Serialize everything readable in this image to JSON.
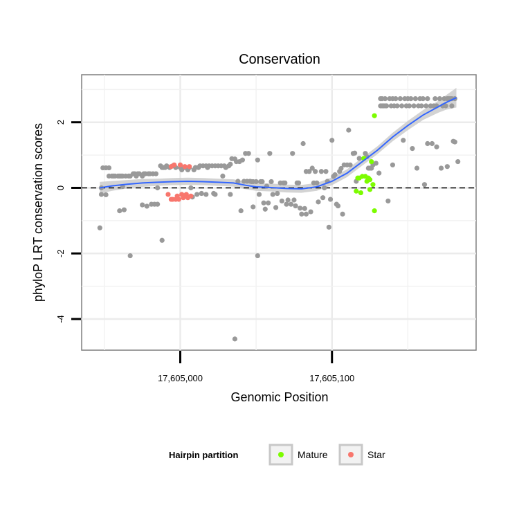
{
  "chart_data": {
    "type": "scatter",
    "title": "Conservation",
    "xlabel": "Genomic Position",
    "ylabel": "phyloP LRT conservation scores",
    "xlim": [
      17604935,
      17605195
    ],
    "ylim": [
      -4.95,
      3.45
    ],
    "x_ticks": [
      {
        "value": 17605000,
        "label": "17,605,000"
      },
      {
        "value": 17605100,
        "label": "17,605,100"
      }
    ],
    "y_ticks": [
      {
        "value": 2,
        "label": "2"
      },
      {
        "value": 0,
        "label": "0"
      },
      {
        "value": -2,
        "label": "-2"
      },
      {
        "value": -4,
        "label": "-4"
      }
    ],
    "reference_line": {
      "y": 0,
      "style": "dashed"
    },
    "grid": true,
    "legend": {
      "title": "Hairpin partition",
      "position": "bottom",
      "entries": [
        {
          "label": "Mature",
          "color": "#7CFC00"
        },
        {
          "label": "Star",
          "color": "#F8766D"
        }
      ]
    },
    "colors": {
      "other": "#999999",
      "mature": "#7CFC00",
      "star": "#F8766D",
      "smooth": "#3366FF",
      "ribbon": "#C8C8C8"
    },
    "series": [
      {
        "name": "Other",
        "points": [
          [
            17604947,
            -1.22
          ],
          [
            17604948,
            0.0
          ],
          [
            17604948,
            -0.2
          ],
          [
            17604949,
            0.61
          ],
          [
            17604951,
            -0.21
          ],
          [
            17604951,
            0.61
          ],
          [
            17604953,
            0.61
          ],
          [
            17604953,
            0.36
          ],
          [
            17604955,
            0.36
          ],
          [
            17604956,
            0.36
          ],
          [
            17604957,
            0.36
          ],
          [
            17604959,
            0.36
          ],
          [
            17604960,
            0.36
          ],
          [
            17604960,
            -0.7
          ],
          [
            17604961,
            0.36
          ],
          [
            17604962,
            0.36
          ],
          [
            17604962,
            0.04
          ],
          [
            17604963,
            -0.67
          ],
          [
            17604964,
            0.36
          ],
          [
            17604966,
            0.36
          ],
          [
            17604967,
            -2.07
          ],
          [
            17604967,
            0.36
          ],
          [
            17604969,
            0.43
          ],
          [
            17604970,
            0.43
          ],
          [
            17604971,
            0.36
          ],
          [
            17604972,
            0.43
          ],
          [
            17604973,
            0.43
          ],
          [
            17604975,
            0.36
          ],
          [
            17604975,
            -0.52
          ],
          [
            17604976,
            0.43
          ],
          [
            17604977,
            0.43
          ],
          [
            17604978,
            -0.56
          ],
          [
            17604979,
            0.43
          ],
          [
            17604980,
            0.43
          ],
          [
            17604981,
            -0.5
          ],
          [
            17604982,
            0.43
          ],
          [
            17604983,
            -0.5
          ],
          [
            17604984,
            0.43
          ],
          [
            17604985,
            -0.5
          ],
          [
            17604985,
            0.0
          ],
          [
            17604987,
            0.67
          ],
          [
            17604988,
            0.62
          ],
          [
            17604988,
            -1.6
          ],
          [
            17604989,
            0.62
          ],
          [
            17604990,
            0.62
          ],
          [
            17604991,
            0.67
          ],
          [
            17604993,
            0.62
          ],
          [
            17604995,
            0.67
          ],
          [
            17604997,
            0.62
          ],
          [
            17605000,
            0.62
          ],
          [
            17605001,
            0.55
          ],
          [
            17605003,
            0.62
          ],
          [
            17605005,
            0.55
          ],
          [
            17605006,
            0.62
          ],
          [
            17605007,
            0.0
          ],
          [
            17605008,
            -0.28
          ],
          [
            17605009,
            0.55
          ],
          [
            17605010,
            0.62
          ],
          [
            17605011,
            -0.2
          ],
          [
            17605012,
            0.62
          ],
          [
            17605013,
            0.67
          ],
          [
            17605014,
            -0.17
          ],
          [
            17605015,
            0.67
          ],
          [
            17605017,
            0.67
          ],
          [
            17605017,
            -0.2
          ],
          [
            17605018,
            0.62
          ],
          [
            17605019,
            0.67
          ],
          [
            17605021,
            0.67
          ],
          [
            17605022,
            -0.17
          ],
          [
            17605023,
            0.67
          ],
          [
            17605023,
            -0.2
          ],
          [
            17605025,
            0.67
          ],
          [
            17605027,
            0.67
          ],
          [
            17605028,
            0.36
          ],
          [
            17605029,
            0.67
          ],
          [
            17605030,
            0.62
          ],
          [
            17605032,
            0.67
          ],
          [
            17605033,
            0.72
          ],
          [
            17605033,
            -0.2
          ],
          [
            17605034,
            0.89
          ],
          [
            17605036,
            -4.61
          ],
          [
            17605036,
            0.88
          ],
          [
            17605037,
            0.8
          ],
          [
            17605038,
            0.2
          ],
          [
            17605039,
            0.8
          ],
          [
            17605040,
            -0.7
          ],
          [
            17605041,
            0.85
          ],
          [
            17605042,
            0.2
          ],
          [
            17605043,
            1.05
          ],
          [
            17605044,
            0.2
          ],
          [
            17605045,
            1.05
          ],
          [
            17605046,
            0.2
          ],
          [
            17605047,
            0.19
          ],
          [
            17605048,
            0.19
          ],
          [
            17605048,
            -0.58
          ],
          [
            17605050,
            0.19
          ],
          [
            17605051,
            0.85
          ],
          [
            17605051,
            -2.07
          ],
          [
            17605052,
            -0.2
          ],
          [
            17605053,
            0.19
          ],
          [
            17605054,
            0.19
          ],
          [
            17605055,
            -0.46
          ],
          [
            17605056,
            -0.65
          ],
          [
            17605057,
            0.05
          ],
          [
            17605058,
            -0.46
          ],
          [
            17605059,
            1.05
          ],
          [
            17605060,
            0.19
          ],
          [
            17605061,
            -0.2
          ],
          [
            17605063,
            -0.6
          ],
          [
            17605064,
            -0.17
          ],
          [
            17605066,
            0.15
          ],
          [
            17605067,
            -0.4
          ],
          [
            17605068,
            0.15
          ],
          [
            17605069,
            0.15
          ],
          [
            17605070,
            -0.5
          ],
          [
            17605071,
            -0.37
          ],
          [
            17605073,
            -0.5
          ],
          [
            17605074,
            1.05
          ],
          [
            17605075,
            -0.37
          ],
          [
            17605076,
            -0.55
          ],
          [
            17605077,
            0.15
          ],
          [
            17605078,
            0.15
          ],
          [
            17605079,
            -0.62
          ],
          [
            17605080,
            -0.8
          ],
          [
            17605081,
            1.35
          ],
          [
            17605082,
            -0.63
          ],
          [
            17605083,
            0.5
          ],
          [
            17605083,
            -0.8
          ],
          [
            17605085,
            0.5
          ],
          [
            17605086,
            -0.73
          ],
          [
            17605087,
            0.6
          ],
          [
            17605088,
            0.15
          ],
          [
            17605089,
            0.5
          ],
          [
            17605090,
            0.15
          ],
          [
            17605091,
            -0.43
          ],
          [
            17605093,
            0.5
          ],
          [
            17605094,
            -0.3
          ],
          [
            17605095,
            0.0
          ],
          [
            17605096,
            0.5
          ],
          [
            17605097,
            0.2
          ],
          [
            17605098,
            -1.2
          ],
          [
            17605099,
            -0.35
          ],
          [
            17605100,
            1.45
          ],
          [
            17605101,
            0.35
          ],
          [
            17605102,
            0.4
          ],
          [
            17605103,
            -0.5
          ],
          [
            17605104,
            -0.55
          ],
          [
            17605105,
            0.5
          ],
          [
            17605106,
            0.59
          ],
          [
            17605107,
            -0.8
          ],
          [
            17605108,
            0.7
          ],
          [
            17605110,
            0.7
          ],
          [
            17605111,
            1.76
          ],
          [
            17605112,
            0.7
          ],
          [
            17605114,
            1.05
          ],
          [
            17605115,
            1.06
          ],
          [
            17605116,
            0.2
          ],
          [
            17605118,
            0.9
          ],
          [
            17605122,
            1.05
          ],
          [
            17605123,
            0.95
          ],
          [
            17605124,
            0.6
          ],
          [
            17605125,
            0.6
          ],
          [
            17605126,
            0.6
          ],
          [
            17605127,
            0.7
          ],
          [
            17605129,
            0.75
          ],
          [
            17605131,
            0.45
          ],
          [
            17605132,
            2.72
          ],
          [
            17605132,
            2.5
          ],
          [
            17605133,
            2.72
          ],
          [
            17605133,
            2.5
          ],
          [
            17605134,
            2.5
          ],
          [
            17605135,
            2.5
          ],
          [
            17605135,
            2.72
          ],
          [
            17605136,
            2.5
          ],
          [
            17605137,
            -0.4
          ],
          [
            17605138,
            2.72
          ],
          [
            17605139,
            2.5
          ],
          [
            17605140,
            0.7
          ],
          [
            17605140,
            2.72
          ],
          [
            17605141,
            2.5
          ],
          [
            17605142,
            2.72
          ],
          [
            17605143,
            2.5
          ],
          [
            17605145,
            2.72
          ],
          [
            17605146,
            2.5
          ],
          [
            17605147,
            1.45
          ],
          [
            17605148,
            2.72
          ],
          [
            17605149,
            2.5
          ],
          [
            17605150,
            2.72
          ],
          [
            17605151,
            2.5
          ],
          [
            17605152,
            2.72
          ],
          [
            17605153,
            1.2
          ],
          [
            17605154,
            2.5
          ],
          [
            17605155,
            2.72
          ],
          [
            17605156,
            0.6
          ],
          [
            17605157,
            2.5
          ],
          [
            17605158,
            2.72
          ],
          [
            17605159,
            2.5
          ],
          [
            17605160,
            2.72
          ],
          [
            17605161,
            0.1
          ],
          [
            17605162,
            2.5
          ],
          [
            17605163,
            1.35
          ],
          [
            17605163,
            2.72
          ],
          [
            17605165,
            2.5
          ],
          [
            17605166,
            1.35
          ],
          [
            17605167,
            2.5
          ],
          [
            17605168,
            2.72
          ],
          [
            17605169,
            1.25
          ],
          [
            17605169,
            2.5
          ],
          [
            17605171,
            2.72
          ],
          [
            17605172,
            0.6
          ],
          [
            17605173,
            2.5
          ],
          [
            17605174,
            2.72
          ],
          [
            17605175,
            2.5
          ],
          [
            17605176,
            0.65
          ],
          [
            17605176,
            2.72
          ],
          [
            17605177,
            2.72
          ],
          [
            17605178,
            2.72
          ],
          [
            17605179,
            2.5
          ],
          [
            17605179,
            2.72
          ],
          [
            17605180,
            1.42
          ],
          [
            17605181,
            2.72
          ],
          [
            17605181,
            1.4
          ],
          [
            17605183,
            0.8
          ]
        ]
      },
      {
        "name": "Mature",
        "points": [
          [
            17605116,
            -0.1
          ],
          [
            17605117,
            0.3
          ],
          [
            17605118,
            0.3
          ],
          [
            17605119,
            -0.15
          ],
          [
            17605120,
            0.35
          ],
          [
            17605121,
            0.9
          ],
          [
            17605122,
            0.35
          ],
          [
            17605123,
            0.2
          ],
          [
            17605124,
            0.3
          ],
          [
            17605125,
            0.25
          ],
          [
            17605125,
            -0.05
          ],
          [
            17605126,
            0.8
          ],
          [
            17605127,
            0.1
          ],
          [
            17605128,
            -0.7
          ],
          [
            17605128,
            2.2
          ]
        ]
      },
      {
        "name": "Star",
        "points": [
          [
            17604992,
            -0.2
          ],
          [
            17604994,
            -0.35
          ],
          [
            17604994,
            0.65
          ],
          [
            17604995,
            -0.35
          ],
          [
            17604996,
            0.7
          ],
          [
            17604997,
            -0.35
          ],
          [
            17604998,
            -0.25
          ],
          [
            17604999,
            -0.35
          ],
          [
            17605000,
            0.7
          ],
          [
            17605001,
            -0.2
          ],
          [
            17605002,
            -0.3
          ],
          [
            17605003,
            0.65
          ],
          [
            17605004,
            -0.2
          ],
          [
            17605005,
            -0.3
          ],
          [
            17605006,
            0.65
          ],
          [
            17605007,
            -0.25
          ]
        ]
      }
    ],
    "smooth": [
      [
        17604947,
        0.0
      ],
      [
        17604955,
        0.06
      ],
      [
        17604965,
        0.11
      ],
      [
        17604975,
        0.15
      ],
      [
        17604985,
        0.17
      ],
      [
        17604995,
        0.19
      ],
      [
        17605005,
        0.2
      ],
      [
        17605015,
        0.19
      ],
      [
        17605025,
        0.17
      ],
      [
        17605035,
        0.15
      ],
      [
        17605043,
        0.08
      ],
      [
        17605050,
        0.03
      ],
      [
        17605060,
        0.01
      ],
      [
        17605070,
        -0.02
      ],
      [
        17605080,
        -0.03
      ],
      [
        17605090,
        0.03
      ],
      [
        17605100,
        0.2
      ],
      [
        17605110,
        0.45
      ],
      [
        17605120,
        0.8
      ],
      [
        17605130,
        1.15
      ],
      [
        17605140,
        1.55
      ],
      [
        17605150,
        1.9
      ],
      [
        17605160,
        2.22
      ],
      [
        17605170,
        2.47
      ],
      [
        17605175,
        2.6
      ],
      [
        17605182,
        2.75
      ]
    ],
    "smooth_band": [
      0.18,
      0.15,
      0.13,
      0.12,
      0.11,
      0.11,
      0.11,
      0.11,
      0.11,
      0.11,
      0.12,
      0.12,
      0.12,
      0.12,
      0.12,
      0.12,
      0.12,
      0.12,
      0.12,
      0.12,
      0.13,
      0.14,
      0.15,
      0.18,
      0.22,
      0.3
    ]
  }
}
